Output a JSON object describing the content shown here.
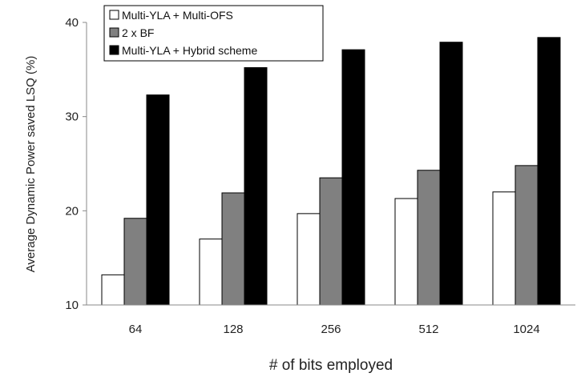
{
  "chart_data": {
    "type": "bar",
    "title": "",
    "xlabel": "# of bits employed",
    "ylabel": "Average Dynamic Power saved LSQ (%)",
    "categories": [
      "64",
      "128",
      "256",
      "512",
      "1024"
    ],
    "ylim": [
      10,
      40
    ],
    "yticks": [
      10,
      20,
      30,
      40
    ],
    "grid": false,
    "legend_position": "top-left",
    "series": [
      {
        "name": "Multi-YLA + Multi-OFS",
        "values": [
          13.2,
          17.0,
          19.7,
          21.3,
          22.0
        ],
        "color": "#ffffff"
      },
      {
        "name": "2 x BF",
        "values": [
          19.2,
          21.9,
          23.5,
          24.3,
          24.8
        ],
        "color": "#808080"
      },
      {
        "name": "Multi-YLA + Hybrid scheme",
        "values": [
          32.3,
          35.2,
          37.1,
          37.9,
          38.4
        ],
        "color": "#000000"
      }
    ]
  }
}
